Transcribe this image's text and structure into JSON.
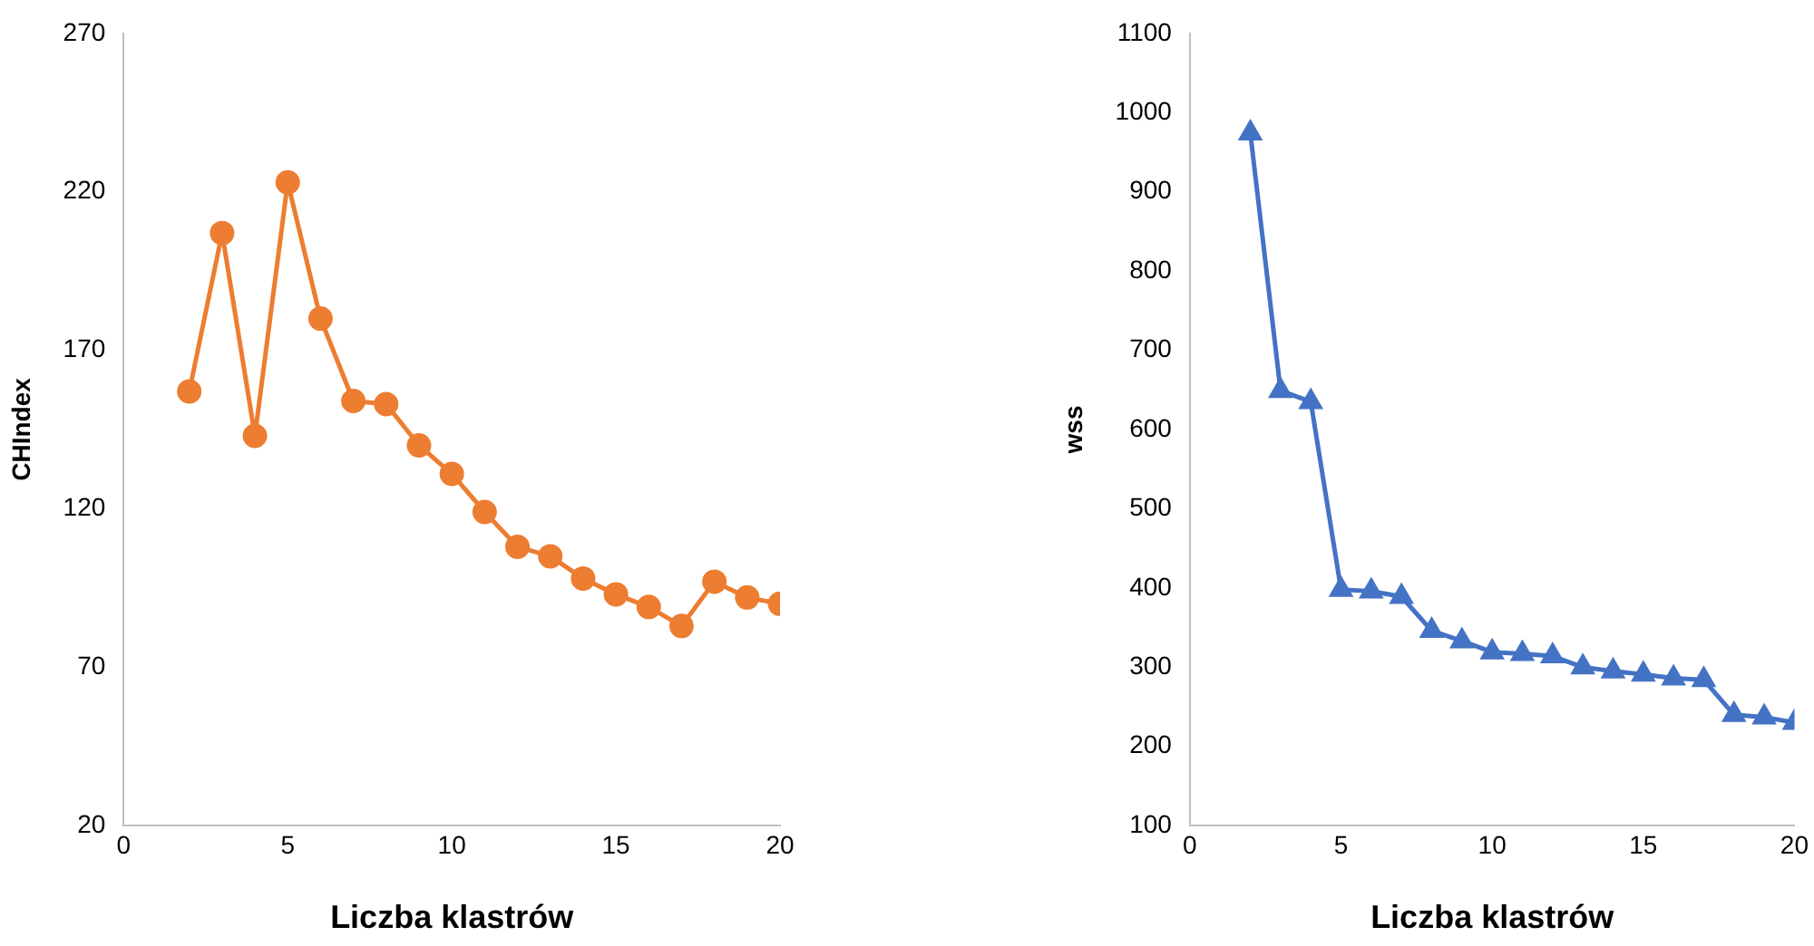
{
  "chart_data": [
    {
      "type": "line",
      "xlabel": "Liczba klastrów",
      "ylabel": "CHIndex",
      "x": [
        2,
        3,
        4,
        5,
        6,
        7,
        8,
        9,
        10,
        11,
        12,
        13,
        14,
        15,
        16,
        17,
        18,
        19,
        20
      ],
      "series": [
        {
          "color": "#ed7d31",
          "values": [
            157,
            207,
            143,
            223,
            180,
            154,
            153,
            140,
            131,
            119,
            108,
            105,
            98,
            93,
            89,
            83,
            97,
            92,
            90
          ]
        }
      ],
      "xlim": [
        0,
        20
      ],
      "xticks": [
        0,
        5,
        10,
        15,
        20
      ],
      "ylim": [
        20,
        270
      ],
      "yticks": [
        20,
        70,
        120,
        170,
        220,
        270
      ],
      "marker": "circle",
      "grid": false,
      "legend": false
    },
    {
      "type": "line",
      "xlabel": "Liczba klastrów",
      "ylabel": "wss",
      "x": [
        2,
        3,
        4,
        5,
        6,
        7,
        8,
        9,
        10,
        11,
        12,
        13,
        14,
        15,
        16,
        17,
        18,
        19,
        20
      ],
      "series": [
        {
          "color": "#4472c4",
          "values": [
            974,
            649,
            635,
            398,
            396,
            389,
            346,
            333,
            319,
            317,
            314,
            300,
            295,
            291,
            286,
            284,
            240,
            237,
            230
          ]
        }
      ],
      "xlim": [
        0,
        20
      ],
      "xticks": [
        0,
        5,
        10,
        15,
        20
      ],
      "ylim": [
        100,
        1100
      ],
      "yticks": [
        100,
        200,
        300,
        400,
        500,
        600,
        700,
        800,
        900,
        1000,
        1100
      ],
      "marker": "triangle",
      "grid": false,
      "legend": false
    }
  ]
}
